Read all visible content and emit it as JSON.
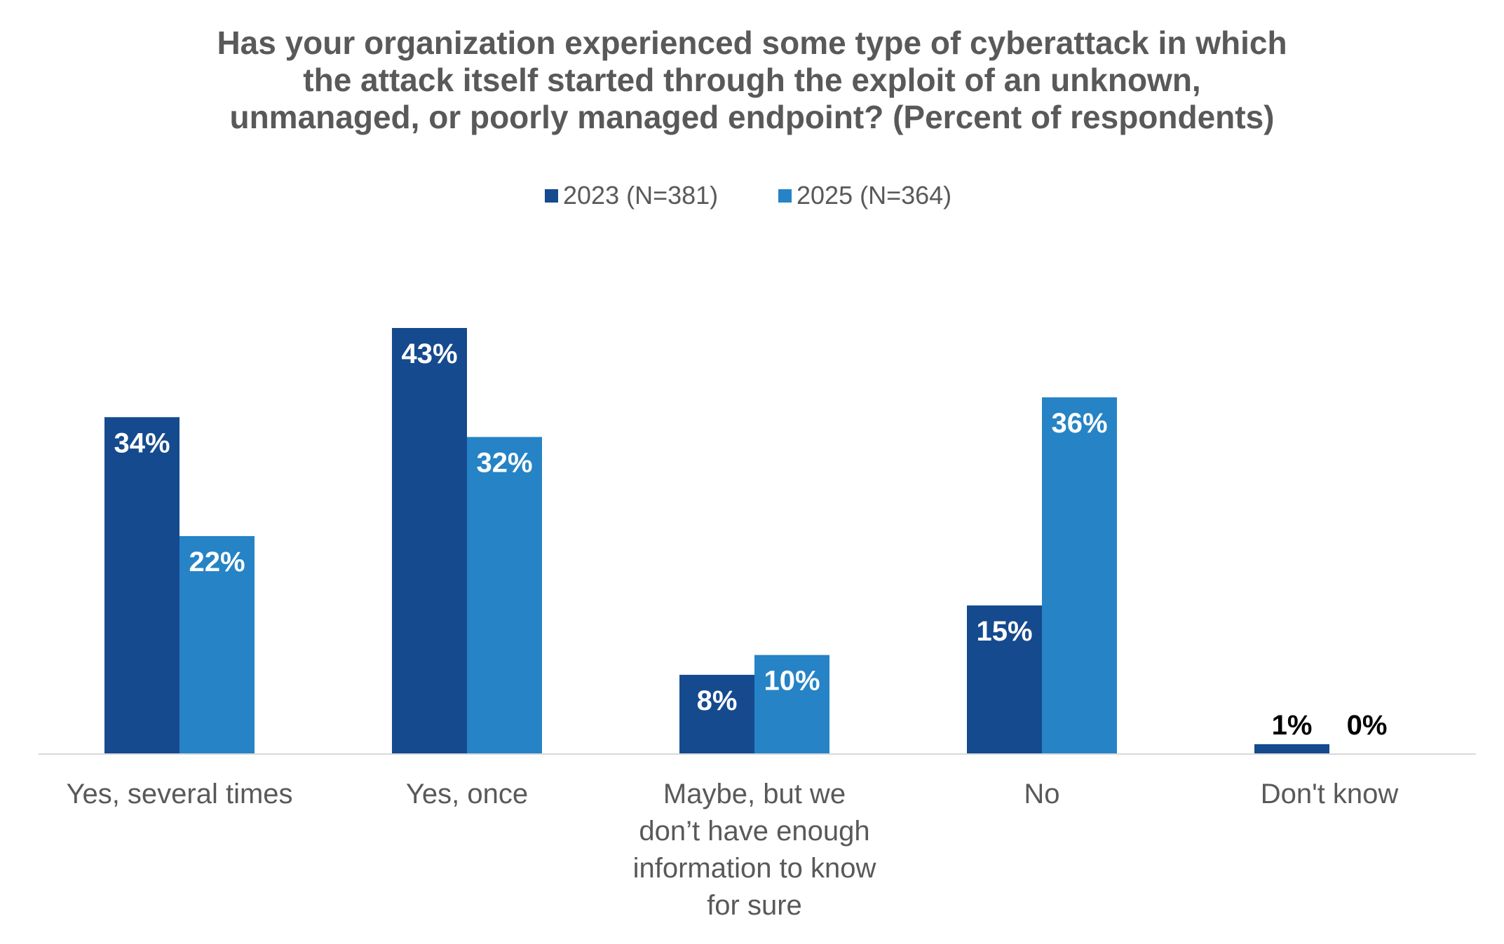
{
  "chart_data": {
    "type": "bar",
    "title_lines": [
      "Has your organization experienced some type of cyberattack in which",
      "the attack itself started through the exploit of an unknown,",
      "unmanaged, or poorly managed endpoint? (Percent of respondents)"
    ],
    "categories": [
      [
        "Yes, several times"
      ],
      [
        "Yes, once"
      ],
      [
        "Maybe, but we",
        "don’t have enough",
        "information to know",
        "for sure"
      ],
      [
        "No"
      ],
      [
        "Don't know"
      ]
    ],
    "series": [
      {
        "name": "2023 (N=381)",
        "color": "#154A8E",
        "values": [
          34,
          43,
          8,
          15,
          1
        ],
        "labels": [
          "34%",
          "43%",
          "8%",
          "15%",
          "1%"
        ]
      },
      {
        "name": "2025 (N=364)",
        "color": "#2683C6",
        "values": [
          22,
          32,
          10,
          36,
          0
        ],
        "labels": [
          "22%",
          "32%",
          "10%",
          "36%",
          "0%"
        ]
      }
    ],
    "ylim": [
      0,
      43
    ],
    "grid": false,
    "legend_position": "top"
  },
  "colors": {
    "axis_line": "#D9D9D9",
    "label_inside": "#FFFFFF",
    "label_outside": "#000000",
    "category_text": "#595959",
    "legend_text": "#595959",
    "title_text": "#595959"
  }
}
